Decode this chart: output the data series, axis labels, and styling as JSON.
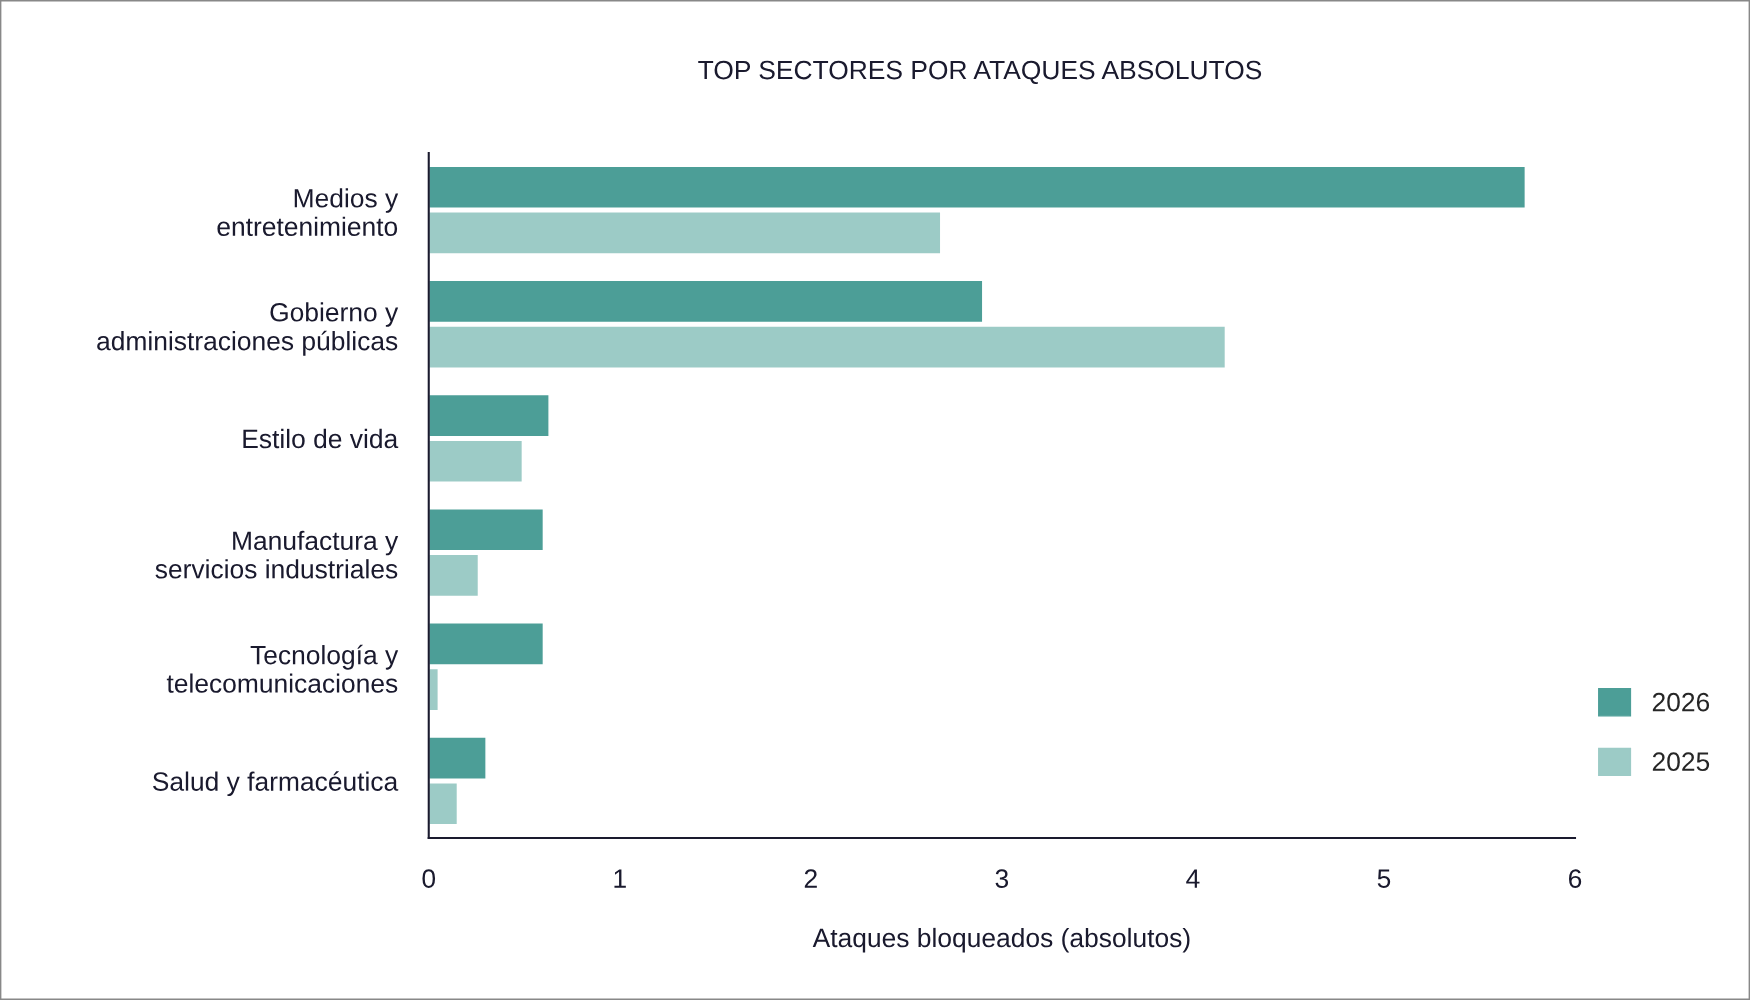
{
  "chart_data": {
    "type": "bar",
    "orientation": "horizontal",
    "title": "TOP SECTORES POR ATAQUES ABSOLUTOS",
    "xlabel": "Ataques bloqueados (absolutos)",
    "categories": [
      "Medios y\nentretenimiento",
      "Gobierno y\nadministraciones públicas",
      "Estilo de vida",
      "Manufactura y\nservicios industriales",
      "Tecnología y\ntelecomunicaciones",
      "Salud y farmacéutica"
    ],
    "series": [
      {
        "name": "2026",
        "color": "#4c9e97",
        "values": [
          5.74,
          2.9,
          0.63,
          0.6,
          0.6,
          0.3
        ]
      },
      {
        "name": "2025",
        "color": "#9ccbc6",
        "values": [
          2.68,
          4.17,
          0.49,
          0.26,
          0.05,
          0.15
        ]
      }
    ],
    "xlim": [
      0,
      6
    ],
    "xticks": [
      0,
      1,
      2,
      3,
      4,
      5,
      6
    ],
    "grid": false,
    "legend": "bottom right"
  }
}
